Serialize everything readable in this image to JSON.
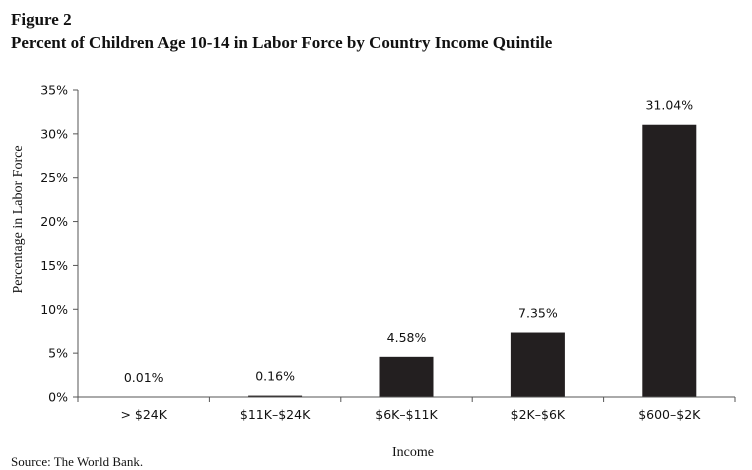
{
  "figure": {
    "label": "Figure 2",
    "title": "Percent of Children Age 10-14 in Labor Force by Country Income Quintile",
    "source": "Source: The World Bank."
  },
  "chart_data": {
    "type": "bar",
    "categories": [
      "> $24K",
      "$11K–$24K",
      "$6K–$11K",
      "$2K–$6K",
      "$600–$2K"
    ],
    "values": [
      0.01,
      0.16,
      4.58,
      7.35,
      31.04
    ],
    "data_labels": [
      "0.01%",
      "0.16%",
      "4.58%",
      "7.35%",
      "31.04%"
    ],
    "yticks": [
      0,
      5,
      10,
      15,
      20,
      25,
      30,
      35
    ],
    "ytick_labels": [
      "0%",
      "5%",
      "10%",
      "15%",
      "20%",
      "25%",
      "30%",
      "35%"
    ],
    "ylim": [
      0,
      35
    ],
    "xlabel": "Income",
    "ylabel": "Percentage in Labor Force",
    "grid": false,
    "bar_color": "#231f20",
    "axis_color": "#555555"
  }
}
